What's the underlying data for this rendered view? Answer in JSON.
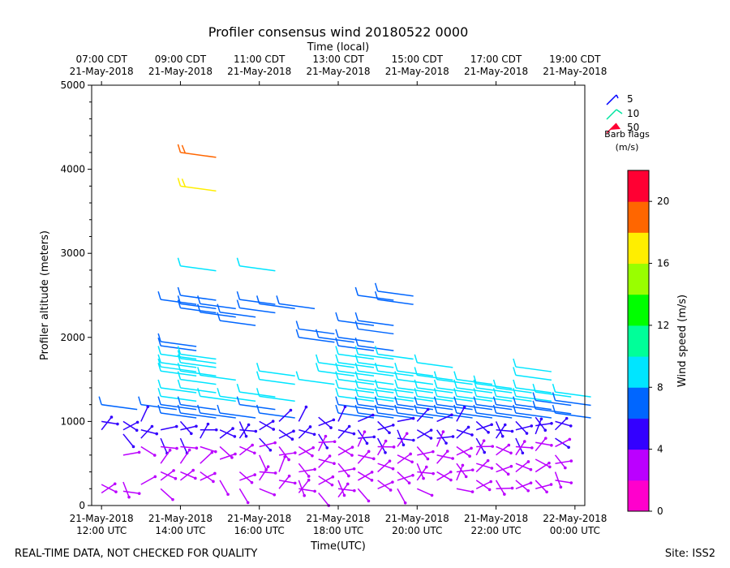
{
  "chart_data": {
    "type": "wind-barb",
    "title": "Profiler consensus wind 20180522 0000",
    "top_axis_label": "Time (local)",
    "xlabel": "Time(UTC)",
    "ylabel": "Profiler altitude (meters)",
    "xlim_hours_utc": [
      11.75,
      24.25
    ],
    "ylim": [
      0,
      5000
    ],
    "y_ticks": [
      0,
      1000,
      2000,
      3000,
      4000,
      5000
    ],
    "bottom_ticks": [
      {
        "hour": 12,
        "line1": "21-May-2018",
        "line2": "12:00 UTC"
      },
      {
        "hour": 14,
        "line1": "21-May-2018",
        "line2": "14:00 UTC"
      },
      {
        "hour": 16,
        "line1": "21-May-2018",
        "line2": "16:00 UTC"
      },
      {
        "hour": 18,
        "line1": "21-May-2018",
        "line2": "18:00 UTC"
      },
      {
        "hour": 20,
        "line1": "21-May-2018",
        "line2": "20:00 UTC"
      },
      {
        "hour": 22,
        "line1": "21-May-2018",
        "line2": "22:00 UTC"
      },
      {
        "hour": 24,
        "line1": "22-May-2018",
        "line2": "00:00 UTC"
      }
    ],
    "top_ticks": [
      {
        "hour": 12,
        "line1": "07:00 CDT",
        "line2": "21-May-2018"
      },
      {
        "hour": 14,
        "line1": "09:00 CDT",
        "line2": "21-May-2018"
      },
      {
        "hour": 16,
        "line1": "11:00 CDT",
        "line2": "21-May-2018"
      },
      {
        "hour": 18,
        "line1": "13:00 CDT",
        "line2": "21-May-2018"
      },
      {
        "hour": 20,
        "line1": "15:00 CDT",
        "line2": "21-May-2018"
      },
      {
        "hour": 22,
        "line1": "17:00 CDT",
        "line2": "21-May-2018"
      },
      {
        "hour": 24,
        "line1": "19:00 CDT",
        "line2": "21-May-2018"
      }
    ],
    "barb_legend": {
      "items": [
        {
          "value": "5",
          "color": "#0000ff"
        },
        {
          "value": "10",
          "color": "#00e5a0"
        },
        {
          "value": "50",
          "color": "#ff0033"
        }
      ],
      "title_line1": "Barb flags",
      "title_line2": "(m/s)"
    },
    "colorbar": {
      "label": "Wind speed (m/s)",
      "min": 0,
      "max": 22,
      "step": 2,
      "tick_values": [
        0,
        4,
        8,
        12,
        16,
        20
      ],
      "colors": [
        "#ff00cc",
        "#bb00ff",
        "#3300ff",
        "#0066ff",
        "#00e5ff",
        "#00ff99",
        "#00ff00",
        "#99ff00",
        "#ffee00",
        "#ff6600",
        "#ff0033"
      ]
    },
    "profiles": [
      {
        "t": 12.0,
        "tops": [
          1200,
          1000,
          900,
          250,
          150
        ]
      },
      {
        "t": 12.55,
        "tops": [
          1000,
          900,
          850,
          600,
          280,
          170
        ]
      },
      {
        "t": 13.0,
        "tops": [
          1200,
          1000,
          900,
          800,
          700,
          250
        ]
      },
      {
        "t": 13.5,
        "tops": [
          2450,
          1950,
          1900,
          1800,
          1700,
          1650,
          1600,
          1400,
          1300,
          1200,
          1100,
          900,
          800,
          700,
          500,
          400,
          300,
          200
        ]
      },
      {
        "t": 14.0,
        "tops": [
          4200,
          3800,
          2850,
          2500,
          2400,
          2350,
          1800,
          1750,
          1700,
          1600,
          1500,
          1400,
          1200,
          1100,
          1000,
          900,
          800,
          700,
          500,
          400,
          300
        ]
      },
      {
        "t": 14.5,
        "tops": [
          2400,
          2300,
          1550,
          1300,
          1100,
          900,
          800,
          700,
          500,
          400,
          300
        ]
      },
      {
        "t": 15.0,
        "tops": [
          2300,
          2200,
          1300,
          1100,
          900,
          800,
          700,
          550,
          300
        ]
      },
      {
        "t": 15.5,
        "tops": [
          2850,
          2450,
          2350,
          1350,
          1200,
          1000,
          900,
          800,
          700,
          600,
          400,
          300,
          200
        ]
      },
      {
        "t": 16.0,
        "tops": [
          2400,
          1600,
          1500,
          1300,
          1100,
          1000,
          900,
          800,
          700,
          600,
          400,
          300,
          200
        ]
      },
      {
        "t": 16.5,
        "tops": [
          2400,
          1000,
          900,
          800,
          700,
          600,
          400,
          300,
          200
        ]
      },
      {
        "t": 17.0,
        "tops": [
          2100,
          2000,
          1500,
          1000,
          900,
          800,
          700,
          600,
          500,
          400,
          300,
          200,
          150
        ]
      },
      {
        "t": 17.5,
        "tops": [
          2000,
          1700,
          1600,
          1050,
          950,
          850,
          750,
          650,
          550,
          450,
          350,
          250,
          150
        ]
      },
      {
        "t": 18.0,
        "tops": [
          2200,
          2000,
          1900,
          1800,
          1700,
          1600,
          1500,
          1400,
          1300,
          1200,
          1100,
          1000,
          900,
          800,
          700,
          600,
          500,
          400,
          300,
          200,
          100
        ]
      },
      {
        "t": 18.5,
        "tops": [
          2500,
          2200,
          2100,
          1900,
          1800,
          1700,
          1600,
          1500,
          1400,
          1300,
          1200,
          1100,
          1000,
          900,
          800,
          700,
          600,
          500,
          400,
          300,
          200
        ]
      },
      {
        "t": 19.0,
        "tops": [
          2550,
          2450,
          1800,
          1600,
          1400,
          1300,
          1200,
          1100,
          1000,
          900,
          800,
          700,
          600,
          500,
          400,
          300,
          200
        ]
      },
      {
        "t": 19.5,
        "tops": [
          1600,
          1500,
          1400,
          1300,
          1200,
          1100,
          1000,
          900,
          800,
          700,
          600,
          500,
          400,
          300,
          200
        ]
      },
      {
        "t": 20.0,
        "tops": [
          1700,
          1550,
          1400,
          1300,
          1200,
          1100,
          1000,
          900,
          800,
          700,
          600,
          500,
          400,
          300,
          200
        ]
      },
      {
        "t": 20.5,
        "tops": [
          1500,
          1400,
          1300,
          1200,
          1100,
          1000,
          900,
          800,
          700,
          600,
          500,
          400,
          300
        ]
      },
      {
        "t": 21.0,
        "tops": [
          1500,
          1400,
          1300,
          1200,
          1100,
          1000,
          900,
          800,
          700,
          600,
          500,
          400,
          300,
          200
        ]
      },
      {
        "t": 21.5,
        "tops": [
          1450,
          1400,
          1300,
          1200,
          1100,
          1000,
          900,
          800,
          700,
          600,
          500,
          400,
          300,
          200
        ]
      },
      {
        "t": 22.0,
        "tops": [
          1400,
          1300,
          1200,
          1100,
          1000,
          900,
          800,
          700,
          600,
          500,
          400,
          300,
          200
        ]
      },
      {
        "t": 22.5,
        "tops": [
          1650,
          1550,
          1400,
          1300,
          1200,
          1100,
          1000,
          900,
          800,
          700,
          600,
          500,
          400,
          300,
          200
        ]
      },
      {
        "t": 23.0,
        "tops": [
          1350,
          1250,
          1150,
          1050,
          950,
          850,
          750,
          650,
          550,
          400,
          300,
          200
        ]
      },
      {
        "t": 23.5,
        "tops": [
          1350,
          1250,
          1100,
          1000,
          900,
          800,
          700,
          600,
          500,
          400,
          300
        ]
      }
    ]
  },
  "footer": {
    "left_note": "REAL-TIME DATA, NOT CHECKED FOR QUALITY",
    "site_label": "Site: ISS2"
  }
}
